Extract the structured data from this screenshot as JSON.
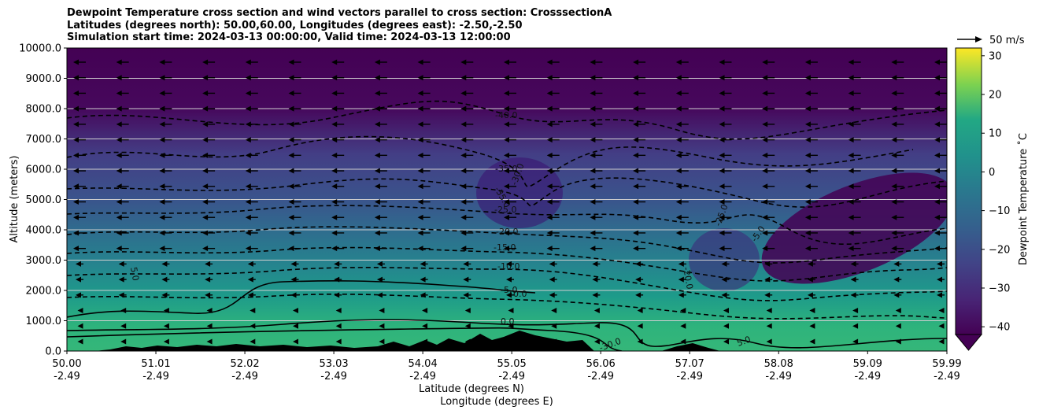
{
  "title_lines": [
    "Dewpoint Temperature cross section and wind vectors parallel to cross section: CrosssectionA",
    "Latitudes (degrees north): 50.00,60.00, Longitudes (degrees east): -2.50,-2.50",
    "Simulation start time: 2024-03-13 00:00:00, Valid time: 2024-03-13 12:00:00"
  ],
  "chart_data": {
    "type": "heatmap",
    "ylabel": "Altitude (meters)",
    "xlabel_lines": [
      "Latitude (degrees N)",
      "Longitude (degrees E)"
    ],
    "xlim": [
      50.0,
      59.99
    ],
    "ylim": [
      0,
      10000
    ],
    "grid": "horizontal",
    "x_ticks": [
      {
        "lat": "50.00",
        "lon": "-2.49"
      },
      {
        "lat": "51.01",
        "lon": "-2.49"
      },
      {
        "lat": "52.02",
        "lon": "-2.49"
      },
      {
        "lat": "53.03",
        "lon": "-2.49"
      },
      {
        "lat": "54.04",
        "lon": "-2.49"
      },
      {
        "lat": "55.05",
        "lon": "-2.49"
      },
      {
        "lat": "56.06",
        "lon": "-2.49"
      },
      {
        "lat": "57.07",
        "lon": "-2.49"
      },
      {
        "lat": "58.08",
        "lon": "-2.49"
      },
      {
        "lat": "59.09",
        "lon": "-2.49"
      },
      {
        "lat": "59.99",
        "lon": "-2.49"
      }
    ],
    "y_ticks": [
      "0.0",
      "1000.0",
      "2000.0",
      "3000.0",
      "4000.0",
      "5000.0",
      "6000.0",
      "7000.0",
      "8000.0",
      "9000.0",
      "10000.0"
    ],
    "colorbar": {
      "label": "Dewpoint Temperature ˚C",
      "range": [
        -42,
        32
      ],
      "ticks": [
        "30",
        "20",
        "10",
        "0",
        "−10",
        "−20",
        "−30",
        "−40"
      ],
      "extend": "min",
      "colormap": "viridis"
    },
    "contour_labels": [
      "-40.0",
      "-35.0",
      "-35.0",
      "-30.0",
      "-25.0",
      "-20.0",
      "-15.0",
      "-10.0",
      "-5.0",
      "0.0",
      "0.0",
      "5.0",
      "-5.0",
      "-25.0",
      "-20.0",
      "-30.0",
      "5.0",
      "0.0"
    ],
    "wind_reference": {
      "label": "50 m/s"
    },
    "approximate_temperature_profile": [
      {
        "altitude": 200,
        "dewpoint": 6
      },
      {
        "altitude": 1000,
        "dewpoint": 2
      },
      {
        "altitude": 2000,
        "dewpoint": -2
      },
      {
        "altitude": 3000,
        "dewpoint": -9
      },
      {
        "altitude": 4000,
        "dewpoint": -17
      },
      {
        "altitude": 5000,
        "dewpoint": -23
      },
      {
        "altitude": 6000,
        "dewpoint": -29
      },
      {
        "altitude": 7000,
        "dewpoint": -34
      },
      {
        "altitude": 8000,
        "dewpoint": -39
      },
      {
        "altitude": 9000,
        "dewpoint": -42
      },
      {
        "altitude": 10000,
        "dewpoint": -42
      }
    ]
  }
}
